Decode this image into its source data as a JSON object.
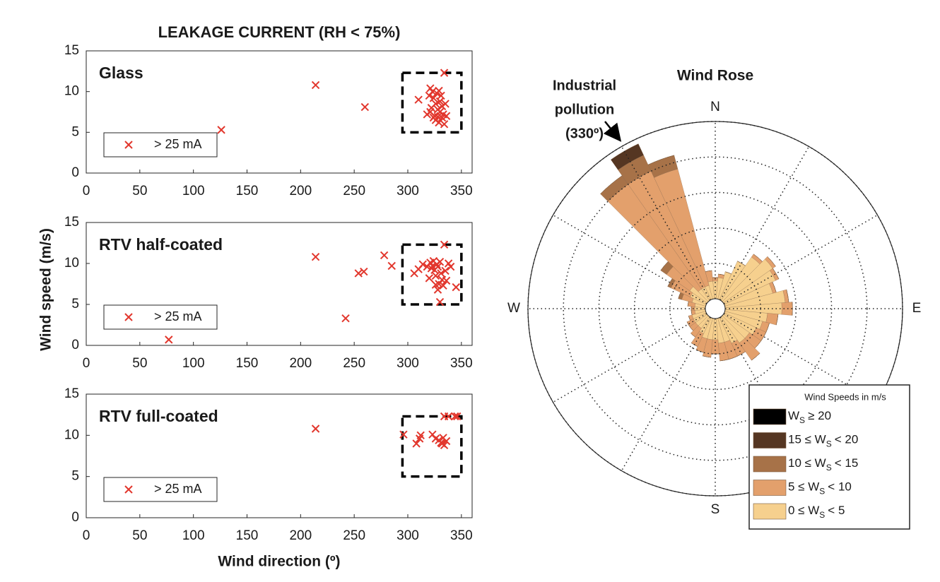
{
  "figure": {
    "title": "LEAKAGE CURRENT (RH < 75%)",
    "x_label": "Wind direction (º)",
    "y_label": "Wind speed (m/s)"
  },
  "chart_data": [
    {
      "type": "scatter",
      "label": "Glass",
      "xlim": [
        0,
        360
      ],
      "xticks": [
        0,
        50,
        100,
        150,
        200,
        250,
        300,
        350
      ],
      "ylim": [
        0,
        15
      ],
      "yticks": [
        0,
        5,
        10,
        15
      ],
      "highlight_box": {
        "x": [
          295,
          350
        ],
        "y": [
          5,
          12.3
        ]
      },
      "series": [
        {
          "name": "> 25 mA",
          "color": "#e2372d",
          "x": [
            126,
            214,
            260,
            334,
            310,
            318,
            320,
            321,
            322,
            323,
            324,
            325,
            326,
            326,
            327,
            328,
            328,
            329,
            330,
            330,
            331,
            332,
            332,
            333,
            334,
            335,
            336,
            321,
            324,
            329
          ],
          "y": [
            5.3,
            10.8,
            8.1,
            12.3,
            9,
            7.2,
            9.5,
            10.4,
            8,
            10,
            9.2,
            7,
            8.5,
            6.5,
            9.8,
            7.8,
            6.9,
            10.1,
            8.8,
            7.5,
            9.5,
            6.8,
            8.2,
            7.2,
            6,
            8.5,
            7,
            7.5,
            6.8,
            6.2
          ]
        }
      ]
    },
    {
      "type": "scatter",
      "label": "RTV half-coated",
      "xlim": [
        0,
        360
      ],
      "xticks": [
        0,
        50,
        100,
        150,
        200,
        250,
        300,
        350
      ],
      "ylim": [
        0,
        15
      ],
      "yticks": [
        0,
        5,
        10,
        15
      ],
      "highlight_box": {
        "x": [
          295,
          350
        ],
        "y": [
          5,
          12.3
        ]
      },
      "series": [
        {
          "name": "> 25 mA",
          "color": "#e2372d",
          "x": [
            77,
            214,
            242,
            254,
            259,
            278,
            285,
            306,
            310,
            314,
            318,
            320,
            321,
            323,
            324,
            325,
            326,
            327,
            328,
            328,
            329,
            330,
            330,
            331,
            332,
            333,
            334,
            335,
            336,
            338,
            340,
            345,
            322,
            326
          ],
          "y": [
            0.7,
            10.8,
            3.3,
            8.8,
            9,
            11,
            9.7,
            8.8,
            9.3,
            9.9,
            9.6,
            8.2,
            10.1,
            9.7,
            10.3,
            9.2,
            8.5,
            9.9,
            6.8,
            9.6,
            7.5,
            10.2,
            5.3,
            8.8,
            8,
            7.3,
            12.3,
            9.1,
            7.9,
            10,
            9.6,
            7.1,
            9.4,
            7.4
          ]
        }
      ]
    },
    {
      "type": "scatter",
      "label": "RTV full-coated",
      "xlim": [
        0,
        360
      ],
      "xticks": [
        0,
        50,
        100,
        150,
        200,
        250,
        300,
        350
      ],
      "ylim": [
        0,
        15
      ],
      "yticks": [
        0,
        5,
        10,
        15
      ],
      "highlight_box": {
        "x": [
          295,
          350
        ],
        "y": [
          5,
          12.3
        ]
      },
      "series": [
        {
          "name": "> 25 mA",
          "color": "#e2372d",
          "x": [
            214,
            296,
            308,
            311,
            312,
            323,
            326,
            329,
            331,
            333,
            334,
            336,
            334,
            338,
            344,
            346,
            332
          ],
          "y": [
            10.8,
            10.1,
            9,
            9.6,
            10,
            10.1,
            9.6,
            9.4,
            9.1,
            9.7,
            8.8,
            9.3,
            12.3,
            12.3,
            12.3,
            12.3,
            9
          ]
        }
      ]
    },
    {
      "type": "rose",
      "title": "Wind Rose",
      "rlim": [
        0,
        5
      ],
      "rticks": [
        1,
        2,
        3,
        4,
        5
      ],
      "angle_ticks": [
        0,
        30,
        60,
        90,
        120,
        150,
        180,
        210,
        240,
        270,
        300,
        330
      ],
      "compass_labels": [
        {
          "value": 0,
          "label": "N"
        },
        {
          "value": 90,
          "label": "E"
        },
        {
          "value": 180,
          "label": "S"
        },
        {
          "value": 270,
          "label": "W"
        }
      ],
      "annotation": [
        "Industrial",
        "pollution",
        "(330º)"
      ],
      "legend_title": "Wind Speeds in m/s",
      "directions": [
        0,
        10,
        20,
        30,
        40,
        50,
        60,
        70,
        80,
        90,
        100,
        110,
        120,
        130,
        140,
        150,
        160,
        170,
        180,
        190,
        200,
        210,
        220,
        230,
        240,
        250,
        260,
        270,
        280,
        290,
        300,
        310,
        320,
        330,
        340,
        350
      ],
      "series": [
        {
          "name": [
            "0 ≤ W",
            "S",
            "< 5"
          ],
          "color": "#f6d08e",
          "values": [
            0.5,
            0.6,
            0.8,
            1.2,
            1.5,
            1.7,
            1.6,
            1.4,
            1.7,
            1.6,
            1.2,
            1.1,
            1.0,
            0.9,
            0.9,
            0.8,
            0.7,
            0.7,
            0.6,
            0.6,
            0.6,
            0.5,
            0.4,
            0.4,
            0.4,
            0.4,
            0.3,
            0.3,
            0.3,
            0.4,
            0.5,
            0.6,
            0.4,
            0.4,
            0.4,
            0.5
          ]
        },
        {
          "name": [
            "5 ≤ W",
            "S",
            "< 10"
          ],
          "color": "#e3a06c",
          "values": [
            0.1,
            0.1,
            0,
            0,
            0.1,
            0.1,
            0.1,
            0.1,
            0.1,
            0.3,
            0.3,
            0.2,
            0.3,
            0.4,
            0.6,
            0.4,
            0.5,
            0.5,
            0.4,
            0.5,
            0.4,
            0.4,
            0.3,
            0.2,
            0.2,
            0.1,
            0.1,
            0.1,
            0.2,
            0.3,
            0.6,
            0.8,
            3.6,
            3.6,
            3.4,
            0.3
          ]
        },
        {
          "name": [
            "10 ≤ W",
            "S",
            "< 15"
          ],
          "color": "#a77248",
          "values": [
            0,
            0,
            0,
            0,
            0,
            0,
            0,
            0,
            0,
            0,
            0,
            0,
            0,
            0,
            0,
            0,
            0,
            0,
            0,
            0,
            0,
            0,
            0,
            0,
            0,
            0,
            0,
            0,
            0,
            0.1,
            0.1,
            0.2,
            0.3,
            0.5,
            0.4,
            0
          ]
        },
        {
          "name": [
            "15 ≤ W",
            "S",
            "< 20"
          ],
          "color": "#553622",
          "values": [
            0,
            0,
            0,
            0,
            0,
            0,
            0,
            0,
            0,
            0,
            0,
            0,
            0,
            0,
            0,
            0,
            0,
            0,
            0,
            0,
            0,
            0,
            0,
            0,
            0,
            0,
            0,
            0,
            0,
            0,
            0,
            0,
            0,
            0.35,
            0,
            0
          ]
        },
        {
          "name": [
            "W",
            "S",
            "≥ 20"
          ],
          "color": "#000000",
          "values": [
            0,
            0,
            0,
            0,
            0,
            0,
            0,
            0,
            0,
            0,
            0,
            0,
            0,
            0,
            0,
            0,
            0,
            0,
            0,
            0,
            0,
            0,
            0,
            0,
            0,
            0,
            0,
            0,
            0,
            0,
            0,
            0,
            0,
            0,
            0,
            0
          ]
        }
      ]
    }
  ]
}
